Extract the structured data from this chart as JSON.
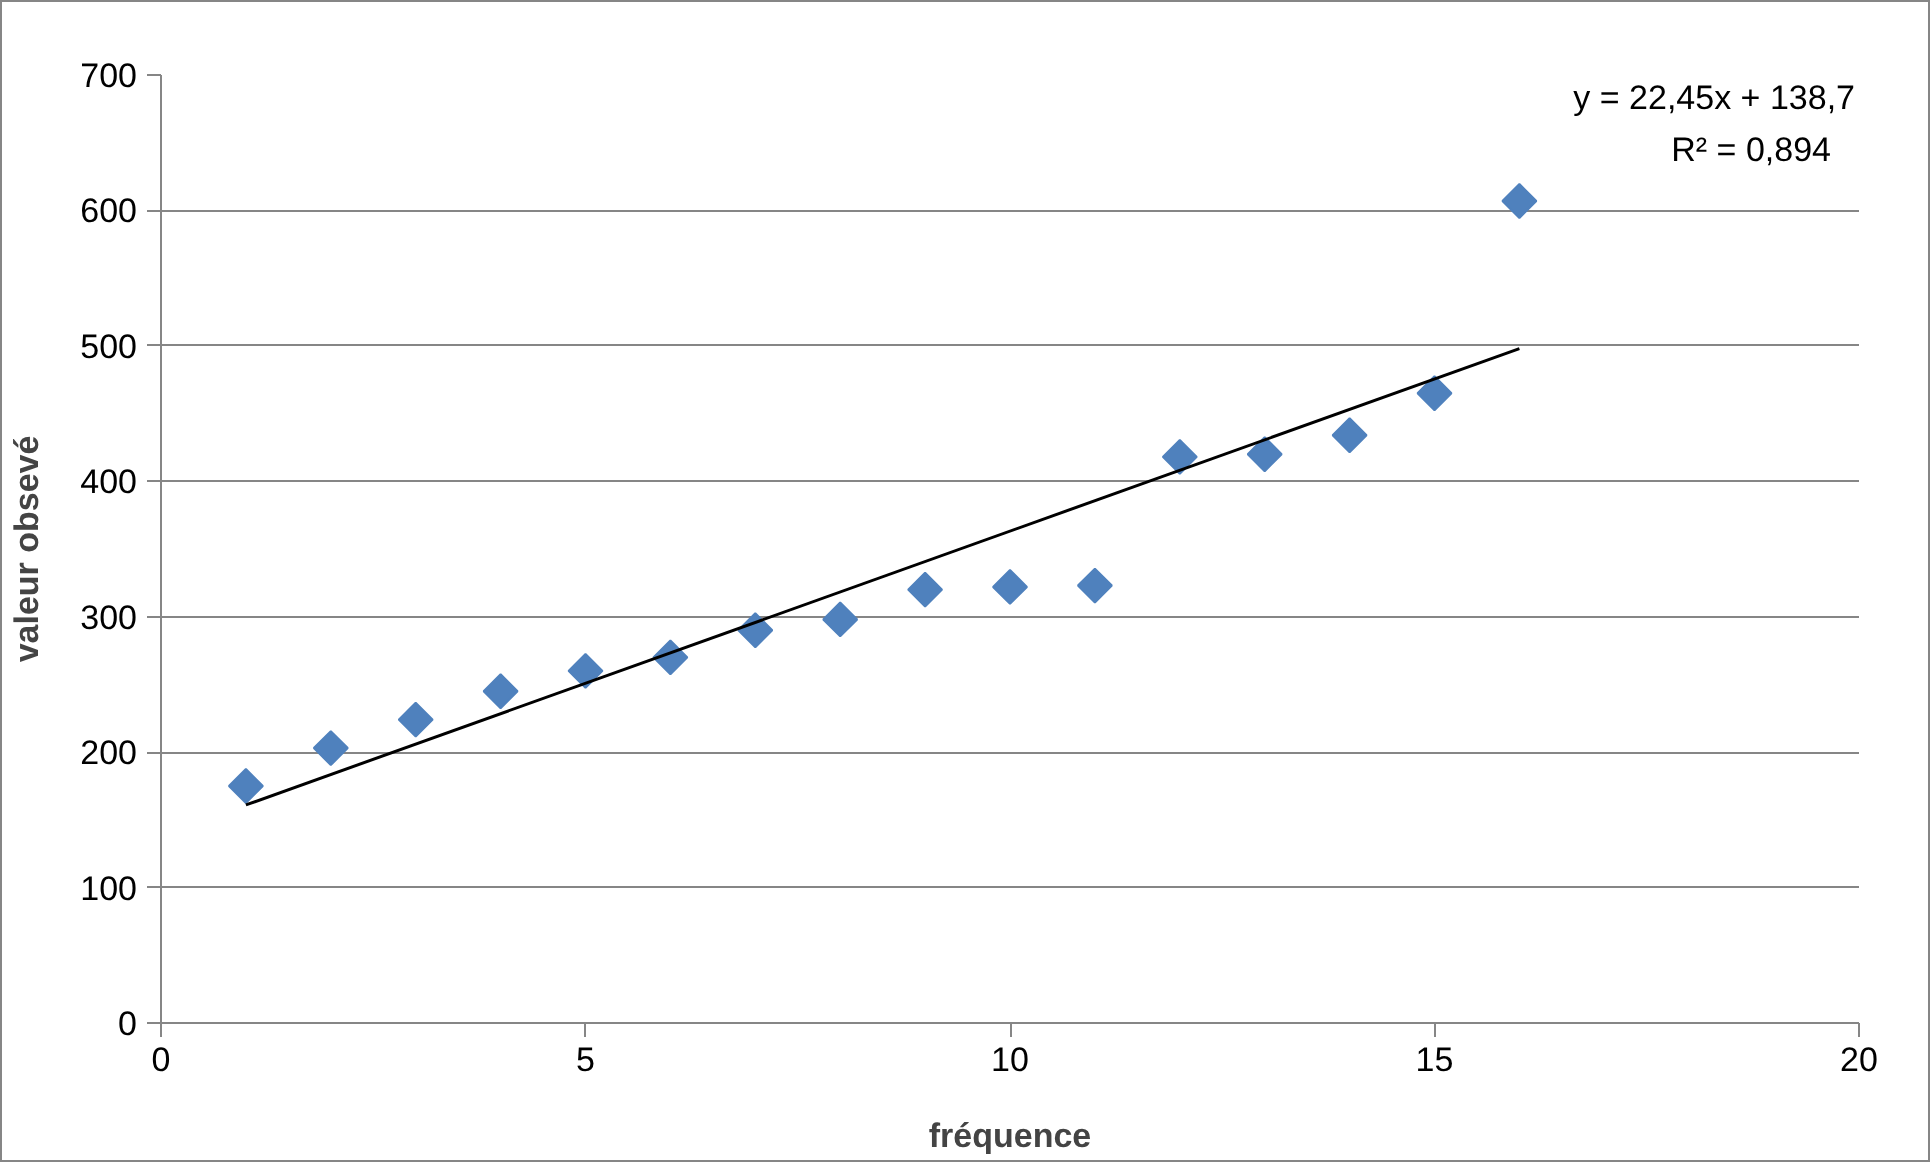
{
  "chart_data": {
    "type": "scatter",
    "xlabel": "fréquence",
    "ylabel": "valeur obsevé",
    "x": [
      1,
      2,
      3,
      4,
      5,
      6,
      7,
      8,
      9,
      10,
      11,
      12,
      13,
      14,
      15,
      16
    ],
    "series": [
      {
        "color": "#4f81bd",
        "marker": "diamond",
        "values": [
          175,
          203,
          224,
          245,
          260,
          270,
          290,
          298,
          320,
          322,
          323,
          418,
          420,
          434,
          465,
          607
        ]
      },
      {
        "type": "line",
        "color": "#000000",
        "x": [
          1,
          16
        ],
        "values": [
          161,
          498
        ],
        "marker": "none",
        "line_style": "solid"
      }
    ],
    "annotations": [
      "y = 22,45x + 138,7",
      "R² = 0,894"
    ],
    "xlim": [
      0,
      20
    ],
    "xticks": [
      0,
      5,
      10,
      15,
      20
    ],
    "ylim": [
      0,
      700
    ],
    "yticks": [
      0,
      100,
      200,
      300,
      400,
      500,
      600,
      700
    ],
    "grid": "y"
  }
}
